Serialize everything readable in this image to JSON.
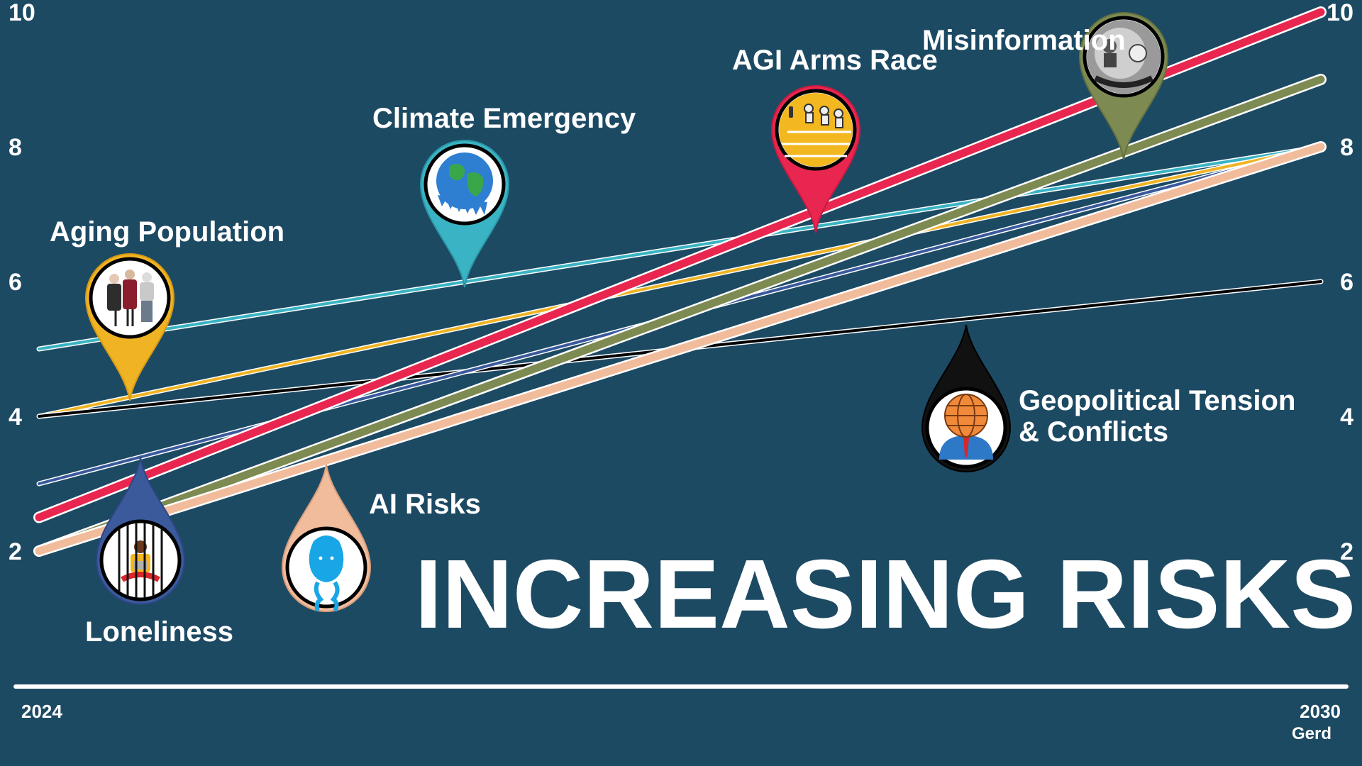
{
  "chart_data": {
    "type": "line",
    "title": "INCREASING RISKS",
    "x": [
      "2024",
      "2030"
    ],
    "ylim": [
      0,
      10
    ],
    "yticks": [
      "2",
      "4",
      "6",
      "8",
      "10"
    ],
    "grid": false,
    "legend": "labels on map-pin markers",
    "series": [
      {
        "name": "Climate  Emergency",
        "values": [
          5,
          8
        ],
        "color": "#3ab4c4",
        "icon": "globe-icon"
      },
      {
        "name": "Aging Population",
        "values": [
          4,
          8
        ],
        "color": "#f0b323",
        "icon": "elderly-people-icon"
      },
      {
        "name": "Geopolitical Tension & Conflicts",
        "values": [
          4,
          6
        ],
        "color": "#000000",
        "icon": "globe-head-person-icon"
      },
      {
        "name": "Loneliness",
        "values": [
          3,
          8
        ],
        "color": "#3a5a9c",
        "icon": "person-behind-bars-icon"
      },
      {
        "name": "AGI Arms Race",
        "values": [
          2.5,
          10
        ],
        "color": "#e8264f",
        "icon": "robot-race-icon"
      },
      {
        "name": "Misinformation",
        "values": [
          2,
          9
        ],
        "color": "#7d8a52",
        "icon": "misinformation-collage-icon"
      },
      {
        "name": "AI Risks",
        "values": [
          2,
          8
        ],
        "color": "#f1bc9c",
        "icon": "ai-face-icon"
      }
    ]
  },
  "labels": {
    "aging": "Aging Population",
    "climate": "Climate  Emergency",
    "agi": "AGI Arms Race",
    "misinfo": "Misinformation",
    "geo_line1": "Geopolitical Tension",
    "geo_line2": "& Conflicts",
    "ai": "AI Risks",
    "lonely": "Loneliness"
  },
  "footer": {
    "year_start": "2024",
    "year_end": "2030",
    "logo": "Gerd"
  }
}
